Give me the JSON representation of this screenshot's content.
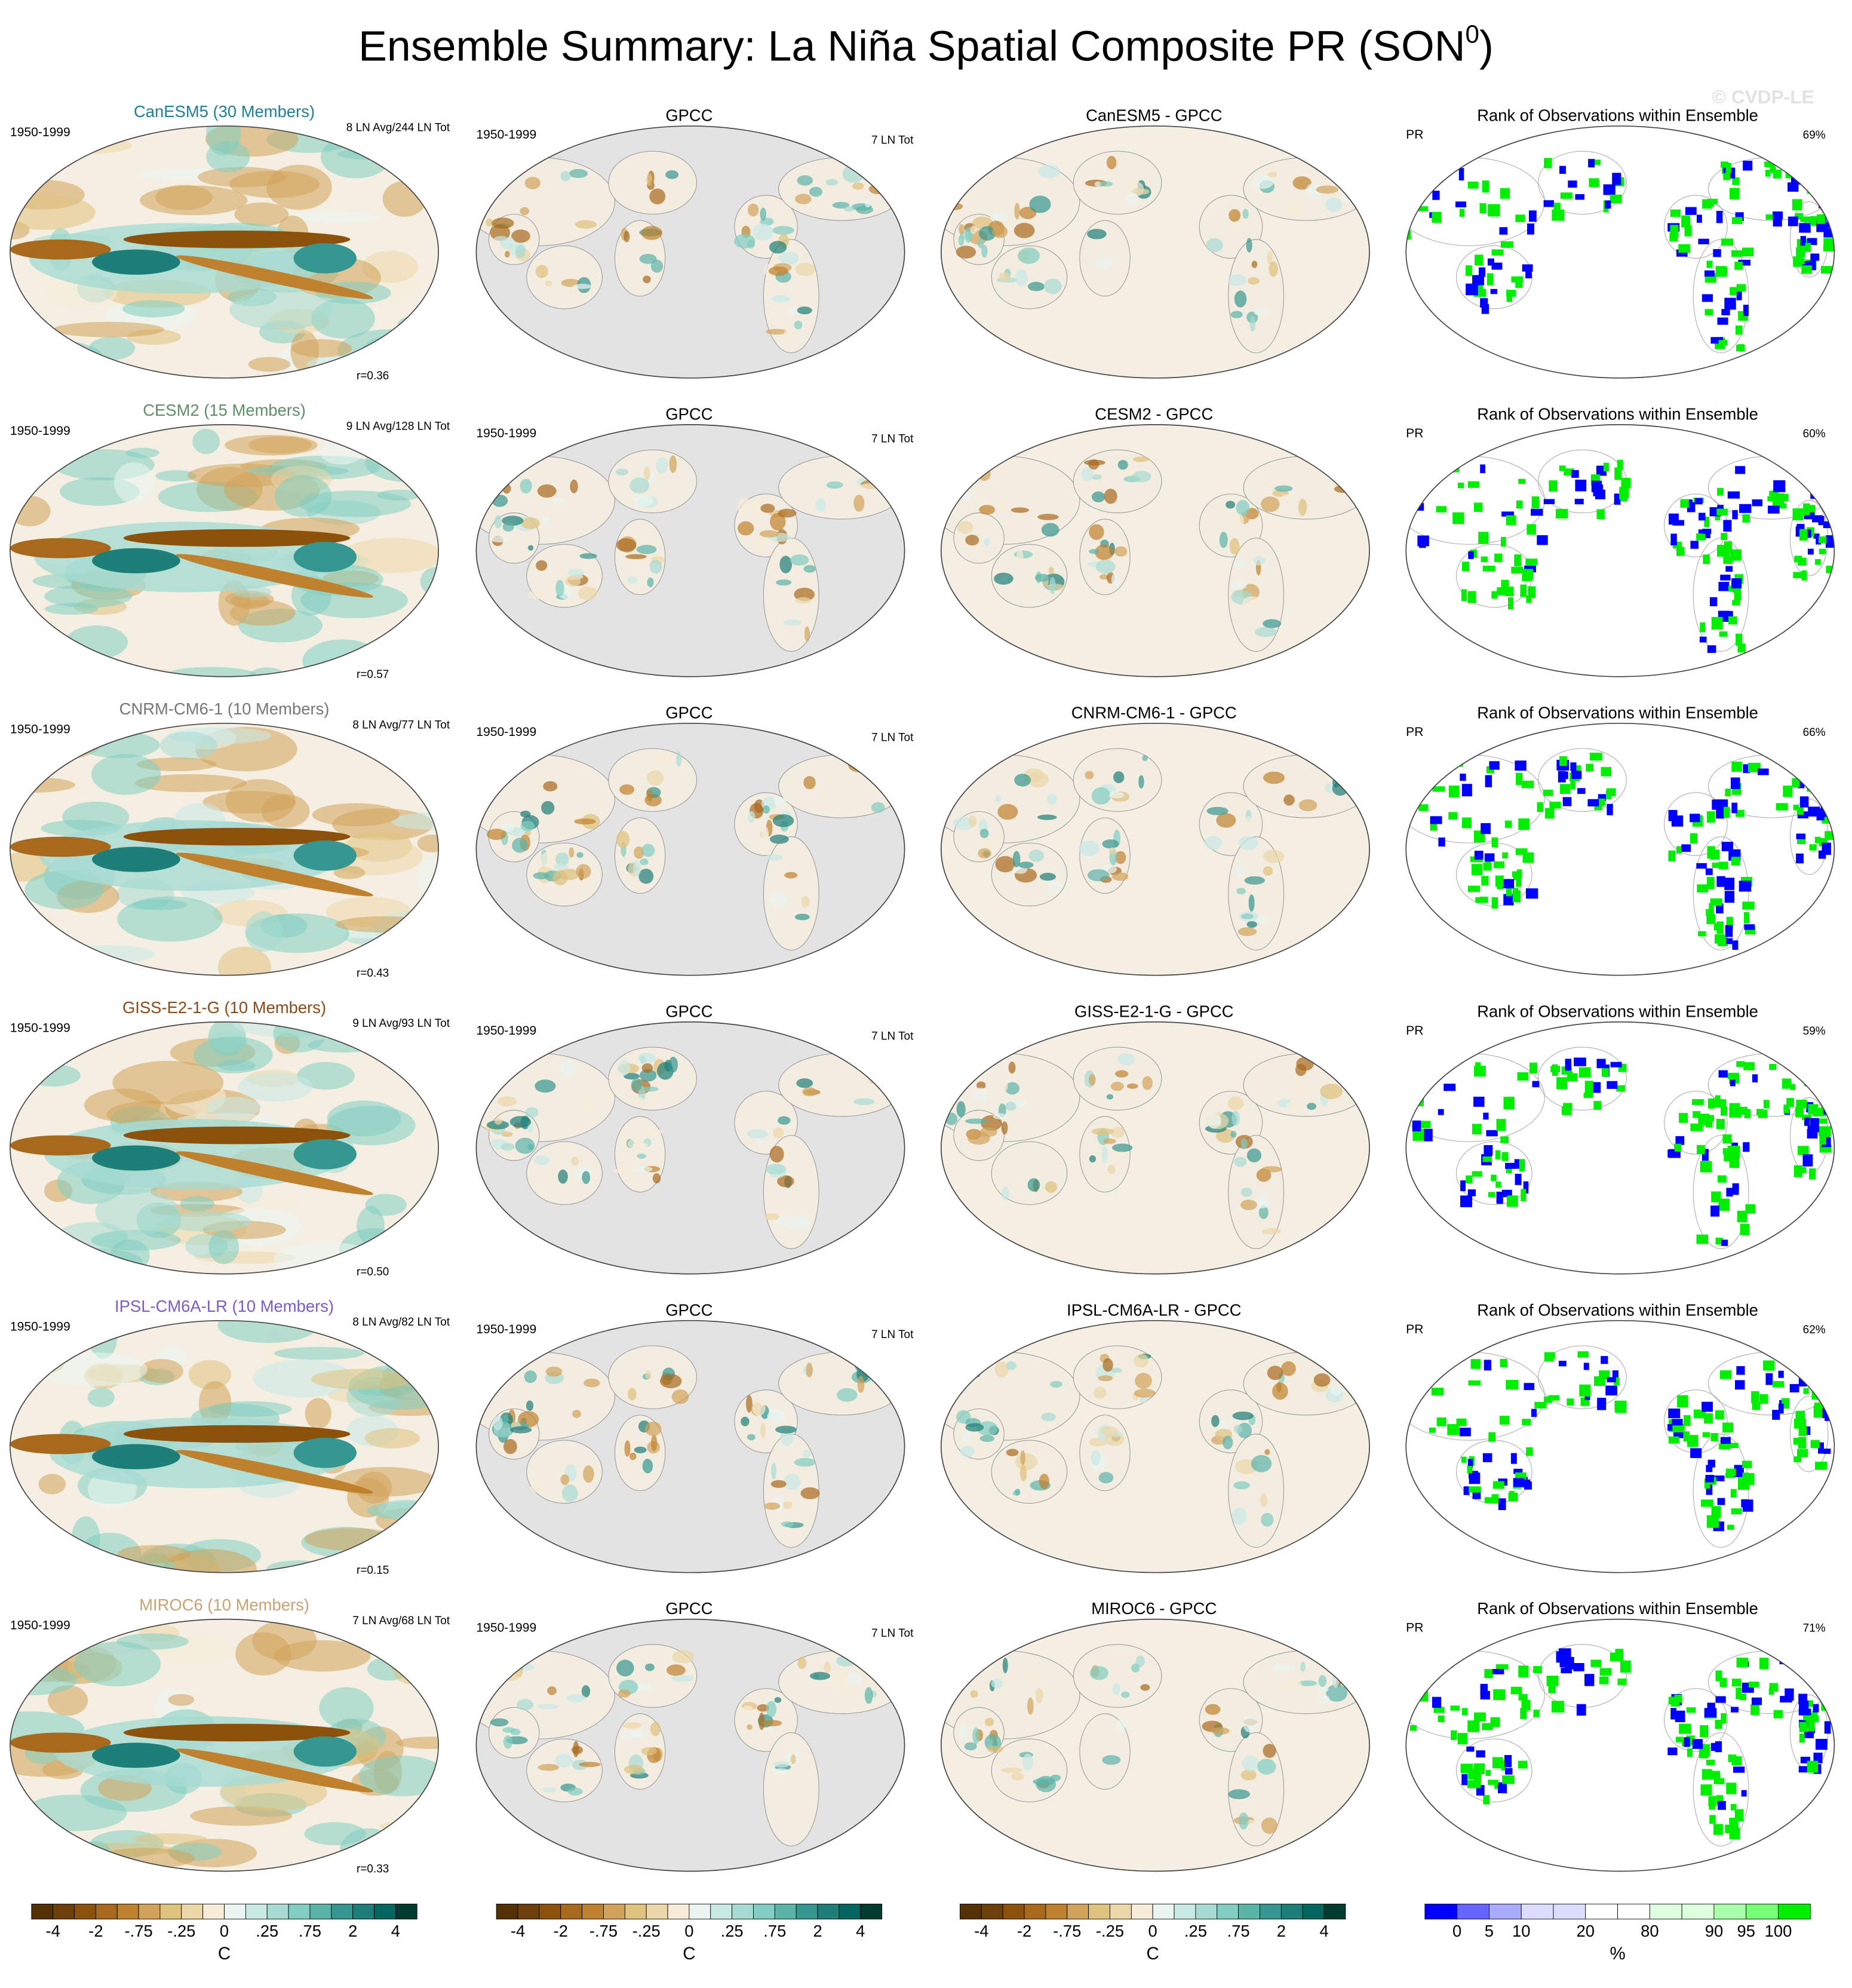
{
  "title": {
    "main": "Ensemble Summary: La Niña Spatial Composite PR (SON",
    "sup": "0",
    "close": ")"
  },
  "watermark": "© CVDP-LE",
  "rows": [
    {
      "model_title": "CanESM5 (30 Members)",
      "title_color": "#1f7f95",
      "period": "1950-1999",
      "counts": "8 LN Avg/244 LN Tot",
      "corr": "r=0.36",
      "obs_title": "GPCC",
      "obs_period": "1950-1999",
      "obs_counts": "7 LN Tot",
      "diff_title": "CanESM5 - GPCC",
      "rank_title": "Rank of Observations within Ensemble",
      "rank_var": "PR",
      "rank_pct": "69%"
    },
    {
      "model_title": "CESM2 (15 Members)",
      "title_color": "#5f8f65",
      "period": "1950-1999",
      "counts": "9 LN Avg/128 LN Tot",
      "corr": "r=0.57",
      "obs_title": "GPCC",
      "obs_period": "1950-1999",
      "obs_counts": "7 LN Tot",
      "diff_title": "CESM2 - GPCC",
      "rank_title": "Rank of Observations within Ensemble",
      "rank_var": "PR",
      "rank_pct": "60%"
    },
    {
      "model_title": "CNRM-CM6-1 (10 Members)",
      "title_color": "#777777",
      "period": "1950-1999",
      "counts": "8 LN Avg/77 LN Tot",
      "corr": "r=0.43",
      "obs_title": "GPCC",
      "obs_period": "1950-1999",
      "obs_counts": "7 LN Tot",
      "diff_title": "CNRM-CM6-1 - GPCC",
      "rank_title": "Rank of Observations within Ensemble",
      "rank_var": "PR",
      "rank_pct": "66%"
    },
    {
      "model_title": "GISS-E2-1-G (10 Members)",
      "title_color": "#8b4a1a",
      "period": "1950-1999",
      "counts": "9 LN Avg/93 LN Tot",
      "corr": "r=0.50",
      "obs_title": "GPCC",
      "obs_period": "1950-1999",
      "obs_counts": "7 LN Tot",
      "diff_title": "GISS-E2-1-G - GPCC",
      "rank_title": "Rank of Observations within Ensemble",
      "rank_var": "PR",
      "rank_pct": "59%"
    },
    {
      "model_title": "IPSL-CM6A-LR (10 Members)",
      "title_color": "#7b5cc8",
      "period": "1950-1999",
      "counts": "8 LN Avg/82 LN Tot",
      "corr": "r=0.15",
      "obs_title": "GPCC",
      "obs_period": "1950-1999",
      "obs_counts": "7 LN Tot",
      "diff_title": "IPSL-CM6A-LR - GPCC",
      "rank_title": "Rank of Observations within Ensemble",
      "rank_var": "PR",
      "rank_pct": "62%"
    },
    {
      "model_title": "MIROC6 (10 Members)",
      "title_color": "#c9a275",
      "period": "1950-1999",
      "counts": "7 LN Avg/68 LN Tot",
      "corr": "r=0.33",
      "obs_title": "GPCC",
      "obs_period": "1950-1999",
      "obs_counts": "7 LN Tot",
      "diff_title": "MIROC6 - GPCC",
      "rank_title": "Rank of Observations within Ensemble",
      "rank_var": "PR",
      "rank_pct": "71%"
    }
  ],
  "colorbars": [
    {
      "colors": [
        "#543005",
        "#6d3f0a",
        "#8c510a",
        "#a8691d",
        "#bf812d",
        "#d2a25a",
        "#dfc27d",
        "#ebd7a8",
        "#f6ecd8",
        "#eaf5f2",
        "#c7eae5",
        "#a6dbd2",
        "#80cdc1",
        "#5ab4a8",
        "#35978f",
        "#1d7f77",
        "#01665e",
        "#003c30"
      ],
      "labels": [
        "-4",
        "-2",
        "-.75",
        "-.25",
        "0",
        ".25",
        ".75",
        "2",
        "4"
      ],
      "unit": "C"
    },
    {
      "colors": [
        "#543005",
        "#6d3f0a",
        "#8c510a",
        "#a8691d",
        "#bf812d",
        "#d2a25a",
        "#dfc27d",
        "#ebd7a8",
        "#f6ecd8",
        "#eaf5f2",
        "#c7eae5",
        "#a6dbd2",
        "#80cdc1",
        "#5ab4a8",
        "#35978f",
        "#1d7f77",
        "#01665e",
        "#003c30"
      ],
      "labels": [
        "-4",
        "-2",
        "-.75",
        "-.25",
        "0",
        ".25",
        ".75",
        "2",
        "4"
      ],
      "unit": "C"
    },
    {
      "colors": [
        "#543005",
        "#6d3f0a",
        "#8c510a",
        "#a8691d",
        "#bf812d",
        "#d2a25a",
        "#dfc27d",
        "#ebd7a8",
        "#f6ecd8",
        "#eaf5f2",
        "#c7eae5",
        "#a6dbd2",
        "#80cdc1",
        "#5ab4a8",
        "#35978f",
        "#1d7f77",
        "#01665e",
        "#003c30"
      ],
      "labels": [
        "-4",
        "-2",
        "-.75",
        "-.25",
        "0",
        ".25",
        ".75",
        "2",
        "4"
      ],
      "unit": "C"
    },
    {
      "colors": [
        "#0000ff",
        "#6666ff",
        "#aaaaff",
        "#dcdcff",
        "#dcdcff",
        "#ffffff",
        "#ffffff",
        "#ddffdd",
        "#ddffdd",
        "#aaffaa",
        "#77ff77",
        "#00ee00"
      ],
      "labels": [
        "0",
        "5",
        "10",
        "20",
        "80",
        "90",
        "95",
        "100"
      ],
      "unit": "%"
    }
  ]
}
